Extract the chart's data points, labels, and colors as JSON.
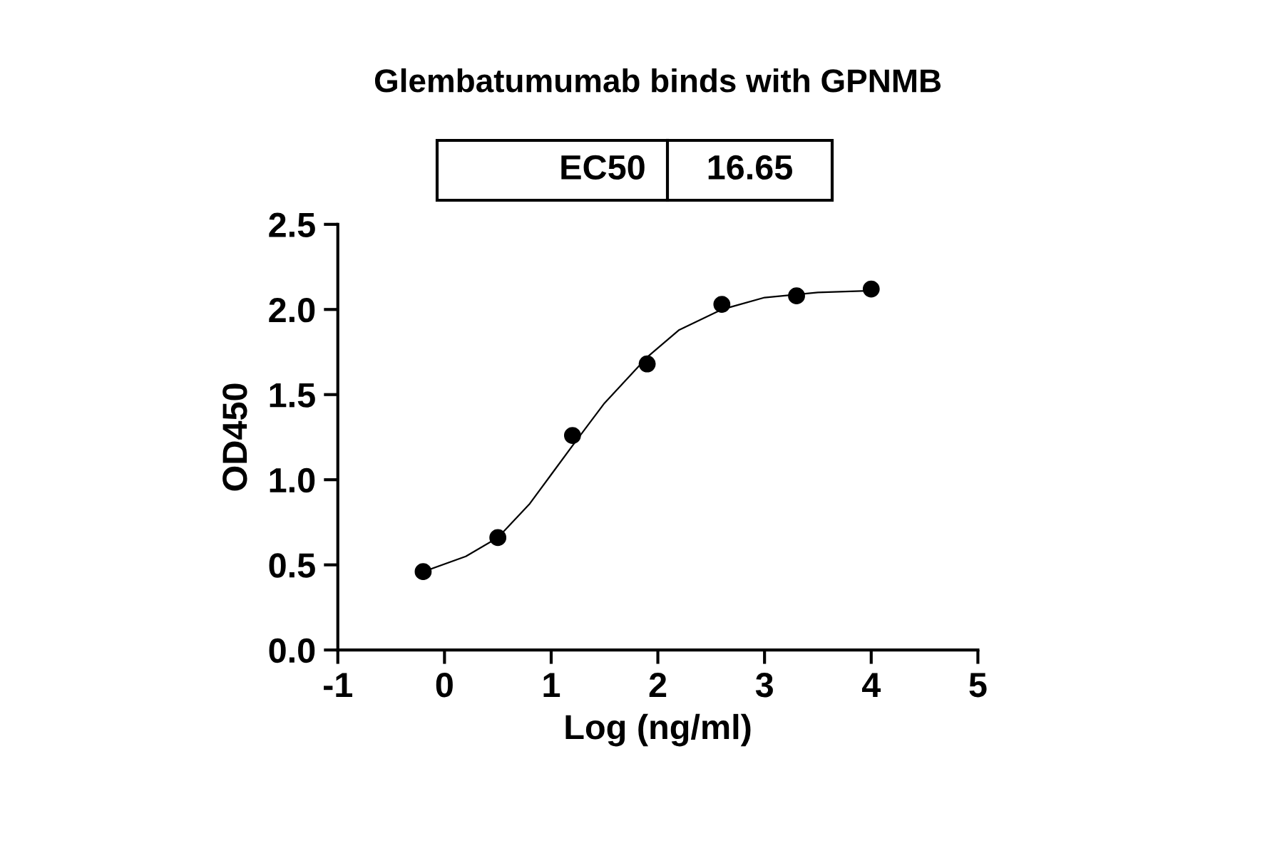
{
  "chart_data": {
    "type": "scatter",
    "title": "Glembatumumab binds with GPNMB",
    "xlabel": "Log (ng/ml)",
    "ylabel": "OD450",
    "annotations": [
      "EC50",
      "16.65"
    ],
    "series": [
      {
        "marker": "circle",
        "color": "#000000",
        "x": [
          -0.2,
          0.5,
          1.2,
          1.9,
          2.6,
          3.3,
          4.0
        ],
        "values": [
          0.46,
          0.66,
          1.26,
          1.68,
          2.03,
          2.08,
          2.12
        ]
      },
      {
        "type": "line",
        "color": "#000000",
        "x": [
          -0.2,
          0.2,
          0.5,
          0.8,
          1.0,
          1.2,
          1.5,
          1.9,
          2.2,
          2.6,
          3.0,
          3.5,
          4.0
        ],
        "values": [
          0.46,
          0.55,
          0.66,
          0.86,
          1.03,
          1.2,
          1.45,
          1.72,
          1.88,
          2.0,
          2.07,
          2.1,
          2.11
        ]
      }
    ],
    "xlim": [
      -1,
      5
    ],
    "xticks": [
      -1,
      0,
      1,
      2,
      3,
      4,
      5
    ],
    "ylim": [
      0,
      2.5
    ],
    "yticks": [
      {
        "value": 0,
        "label": "0.0"
      },
      0.5,
      {
        "value": 1,
        "label": "1.0"
      },
      1.5,
      {
        "value": 2,
        "label": "2.0"
      },
      2.5
    ],
    "grid": false,
    "legend": false
  }
}
